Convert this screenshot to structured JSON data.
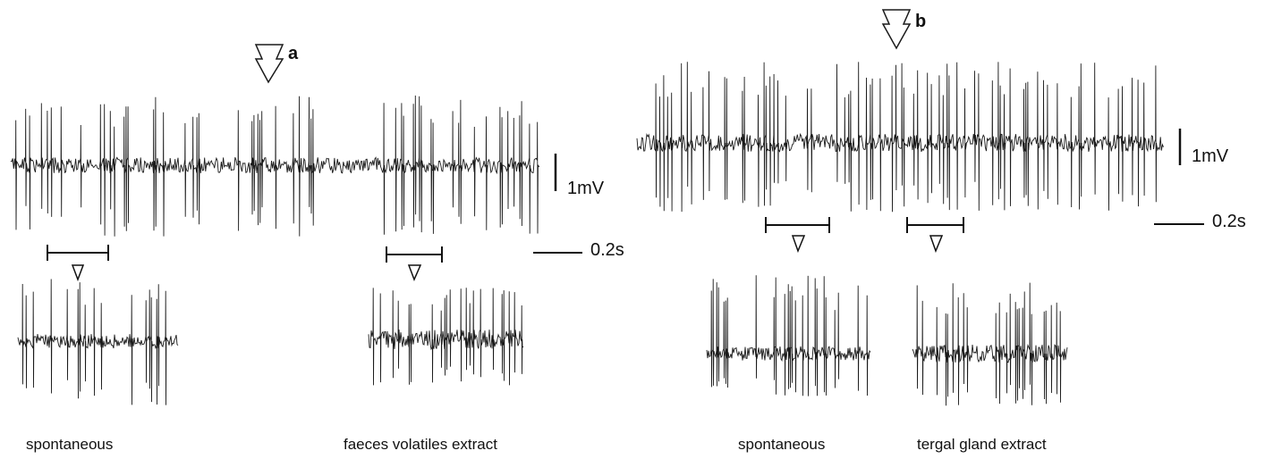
{
  "panel_a": {
    "marker": "a",
    "scale_voltage": "1mV",
    "scale_time": "0.2s",
    "labels": [
      "spontaneous",
      "faeces volatiles extract"
    ]
  },
  "panel_b": {
    "marker": "b",
    "scale_voltage": "1mV",
    "scale_time": "0.2s",
    "labels": [
      "spontaneous",
      "tergal gland extract"
    ]
  },
  "colors": {
    "trace": "#1a1a1a",
    "background": "#ffffff"
  }
}
